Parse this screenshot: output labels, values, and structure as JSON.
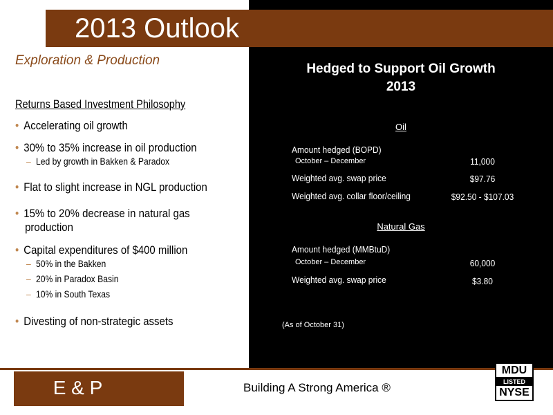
{
  "slide": {
    "title": "2013 Outlook",
    "subtitle": "Exploration & Production"
  },
  "left": {
    "section_heading": "Returns Based Investment Philosophy",
    "bullets": [
      "Accelerating oil growth",
      "30% to 35% increase in oil production",
      "Flat to slight increase in NGL production",
      "15% to 20% decrease in natural gas",
      "Capital expenditures of $400 million",
      "Divesting of non-strategic assets"
    ],
    "bullet_continuation": "production",
    "sub_bullets": {
      "oil": "Led by growth in Bakken & Paradox",
      "capex": [
        "50% in the Bakken",
        "20% in Paradox Basin",
        "10% in South Texas"
      ]
    }
  },
  "hedge": {
    "title_line1": "Hedged to Support Oil Growth",
    "title_line2": "2013",
    "oil": {
      "heading": "Oil",
      "amount_label": "Amount hedged (BOPD)",
      "period": "October – December",
      "amount_value": "11,000",
      "swap_label": "Weighted avg. swap price",
      "swap_value": "$97.76",
      "collar_label": "Weighted avg. collar floor/ceiling",
      "collar_value": "$92.50 - $107.03"
    },
    "gas": {
      "heading": "Natural Gas",
      "amount_label": "Amount hedged (MMBtuD)",
      "period": "October – December",
      "amount_value": "60,000",
      "swap_label": "Weighted avg. swap price",
      "swap_value": "$3.80"
    },
    "as_of": "(As of October 31)"
  },
  "footer": {
    "segment": "E & P",
    "tagline": "Building A Strong America ®",
    "logo_top": "MDU",
    "logo_middle": "LISTED",
    "logo_bottom": "NYSE"
  },
  "colors": {
    "brown": "#7a3a10",
    "bullet": "#c0874f",
    "panel": "#000000"
  }
}
